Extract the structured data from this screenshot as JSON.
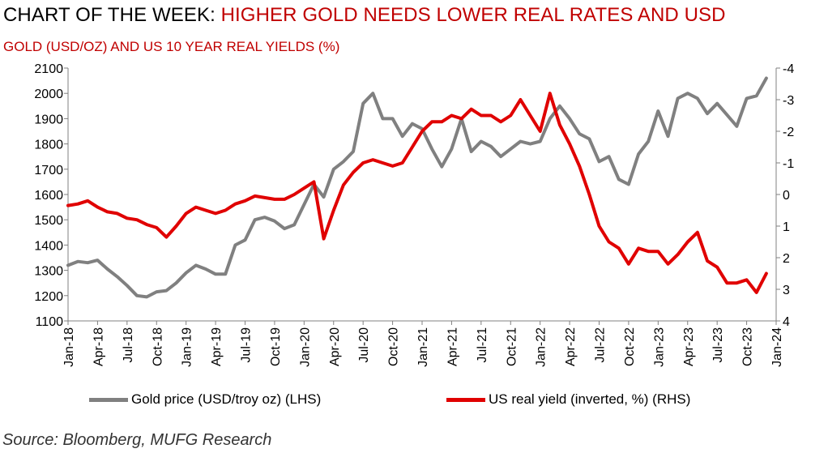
{
  "header": {
    "title_lead": "CHART OF THE WEEK: ",
    "title_highlight": "HIGHER GOLD NEEDS LOWER REAL RATES AND USD",
    "subtitle": "GOLD (USD/OZ) AND US 10 YEAR REAL YIELDS (%)"
  },
  "source": "Source: Bloomberg, MUFG Research",
  "colors": {
    "gold": "#808080",
    "yield": "#e00000",
    "title_accent": "#c00000"
  },
  "chart_data": {
    "type": "line",
    "x_ticks": [
      "Jan-18",
      "Apr-18",
      "Jul-18",
      "Oct-18",
      "Jan-19",
      "Apr-19",
      "Jul-19",
      "Oct-19",
      "Jan-20",
      "Apr-20",
      "Jul-20",
      "Oct-20",
      "Jan-21",
      "Apr-21",
      "Jul-21",
      "Oct-21",
      "Jan-22",
      "Apr-22",
      "Jul-22",
      "Oct-22",
      "Jan-23",
      "Apr-23",
      "Jul-23",
      "Oct-23",
      "Jan-24"
    ],
    "left_axis": {
      "min": 1100,
      "max": 2100,
      "step": 100,
      "ticks": [
        "1100",
        "1200",
        "1300",
        "1400",
        "1500",
        "1600",
        "1700",
        "1800",
        "1900",
        "2000",
        "2100"
      ]
    },
    "right_axis": {
      "inverted": true,
      "min": -4,
      "max": 4,
      "ticks": [
        "-4",
        "-3",
        "-2",
        "-1",
        "0",
        "1",
        "2",
        "3",
        "4"
      ]
    },
    "series": [
      {
        "name": "Gold price (USD/troy oz) (LHS)",
        "axis": "left",
        "points": [
          [
            "2018-01",
            1320
          ],
          [
            "2018-02",
            1335
          ],
          [
            "2018-03",
            1330
          ],
          [
            "2018-04",
            1340
          ],
          [
            "2018-05",
            1305
          ],
          [
            "2018-06",
            1275
          ],
          [
            "2018-07",
            1240
          ],
          [
            "2018-08",
            1200
          ],
          [
            "2018-09",
            1195
          ],
          [
            "2018-10",
            1215
          ],
          [
            "2018-11",
            1220
          ],
          [
            "2018-12",
            1250
          ],
          [
            "2019-01",
            1290
          ],
          [
            "2019-02",
            1320
          ],
          [
            "2019-03",
            1305
          ],
          [
            "2019-04",
            1285
          ],
          [
            "2019-05",
            1285
          ],
          [
            "2019-06",
            1400
          ],
          [
            "2019-07",
            1420
          ],
          [
            "2019-08",
            1500
          ],
          [
            "2019-09",
            1510
          ],
          [
            "2019-10",
            1495
          ],
          [
            "2019-11",
            1465
          ],
          [
            "2019-12",
            1480
          ],
          [
            "2020-01",
            1560
          ],
          [
            "2020-02",
            1640
          ],
          [
            "2020-03",
            1590
          ],
          [
            "2020-04",
            1700
          ],
          [
            "2020-05",
            1730
          ],
          [
            "2020-06",
            1770
          ],
          [
            "2020-07",
            1960
          ],
          [
            "2020-08",
            2000
          ],
          [
            "2020-09",
            1900
          ],
          [
            "2020-10",
            1900
          ],
          [
            "2020-11",
            1830
          ],
          [
            "2020-12",
            1880
          ],
          [
            "2021-01",
            1860
          ],
          [
            "2021-02",
            1780
          ],
          [
            "2021-03",
            1710
          ],
          [
            "2021-04",
            1780
          ],
          [
            "2021-05",
            1900
          ],
          [
            "2021-06",
            1770
          ],
          [
            "2021-07",
            1810
          ],
          [
            "2021-08",
            1790
          ],
          [
            "2021-09",
            1750
          ],
          [
            "2021-10",
            1780
          ],
          [
            "2021-11",
            1810
          ],
          [
            "2021-12",
            1800
          ],
          [
            "2022-01",
            1810
          ],
          [
            "2022-02",
            1900
          ],
          [
            "2022-03",
            1950
          ],
          [
            "2022-04",
            1900
          ],
          [
            "2022-05",
            1840
          ],
          [
            "2022-06",
            1820
          ],
          [
            "2022-07",
            1730
          ],
          [
            "2022-08",
            1750
          ],
          [
            "2022-09",
            1660
          ],
          [
            "2022-10",
            1640
          ],
          [
            "2022-11",
            1760
          ],
          [
            "2022-12",
            1810
          ],
          [
            "2023-01",
            1930
          ],
          [
            "2023-02",
            1830
          ],
          [
            "2023-03",
            1980
          ],
          [
            "2023-04",
            2000
          ],
          [
            "2023-05",
            1980
          ],
          [
            "2023-06",
            1920
          ],
          [
            "2023-07",
            1960
          ],
          [
            "2023-08",
            1915
          ],
          [
            "2023-09",
            1870
          ],
          [
            "2023-10",
            1980
          ],
          [
            "2023-11",
            1990
          ],
          [
            "2023-12",
            2060
          ]
        ]
      },
      {
        "name": "US real yield (inverted, %) (RHS)",
        "axis": "right",
        "points": [
          [
            "2018-01",
            0.35
          ],
          [
            "2018-02",
            0.3
          ],
          [
            "2018-03",
            0.2
          ],
          [
            "2018-04",
            0.4
          ],
          [
            "2018-05",
            0.55
          ],
          [
            "2018-06",
            0.6
          ],
          [
            "2018-07",
            0.75
          ],
          [
            "2018-08",
            0.8
          ],
          [
            "2018-09",
            0.95
          ],
          [
            "2018-10",
            1.05
          ],
          [
            "2018-11",
            1.35
          ],
          [
            "2018-12",
            1.0
          ],
          [
            "2019-01",
            0.6
          ],
          [
            "2019-02",
            0.4
          ],
          [
            "2019-03",
            0.5
          ],
          [
            "2019-04",
            0.6
          ],
          [
            "2019-05",
            0.5
          ],
          [
            "2019-06",
            0.3
          ],
          [
            "2019-07",
            0.2
          ],
          [
            "2019-08",
            0.05
          ],
          [
            "2019-09",
            0.1
          ],
          [
            "2019-10",
            0.15
          ],
          [
            "2019-11",
            0.15
          ],
          [
            "2019-12",
            0.0
          ],
          [
            "2020-01",
            -0.2
          ],
          [
            "2020-02",
            -0.4
          ],
          [
            "2020-03",
            1.4
          ],
          [
            "2020-04",
            0.5
          ],
          [
            "2020-05",
            -0.3
          ],
          [
            "2020-06",
            -0.7
          ],
          [
            "2020-07",
            -1.0
          ],
          [
            "2020-08",
            -1.1
          ],
          [
            "2020-09",
            -1.0
          ],
          [
            "2020-10",
            -0.9
          ],
          [
            "2020-11",
            -1.0
          ],
          [
            "2020-12",
            -1.5
          ],
          [
            "2021-01",
            -2.0
          ],
          [
            "2021-02",
            -2.3
          ],
          [
            "2021-03",
            -2.3
          ],
          [
            "2021-04",
            -2.5
          ],
          [
            "2021-05",
            -2.4
          ],
          [
            "2021-06",
            -2.7
          ],
          [
            "2021-07",
            -2.5
          ],
          [
            "2021-08",
            -2.5
          ],
          [
            "2021-09",
            -2.3
          ],
          [
            "2021-10",
            -2.5
          ],
          [
            "2021-11",
            -3.0
          ],
          [
            "2021-12",
            -2.5
          ],
          [
            "2022-01",
            -2.0
          ],
          [
            "2022-02",
            -3.2
          ],
          [
            "2022-03",
            -2.2
          ],
          [
            "2022-04",
            -1.6
          ],
          [
            "2022-05",
            -0.9
          ],
          [
            "2022-06",
            0.0
          ],
          [
            "2022-07",
            1.0
          ],
          [
            "2022-08",
            1.5
          ],
          [
            "2022-09",
            1.7
          ],
          [
            "2022-10",
            2.2
          ],
          [
            "2022-11",
            1.7
          ],
          [
            "2022-12",
            1.8
          ],
          [
            "2023-01",
            1.8
          ],
          [
            "2023-02",
            2.2
          ],
          [
            "2023-03",
            1.9
          ],
          [
            "2023-04",
            1.5
          ],
          [
            "2023-05",
            1.2
          ],
          [
            "2023-06",
            2.1
          ],
          [
            "2023-07",
            2.3
          ],
          [
            "2023-08",
            2.8
          ],
          [
            "2023-09",
            2.8
          ],
          [
            "2023-10",
            2.7
          ],
          [
            "2023-11",
            3.1
          ],
          [
            "2023-12",
            2.5
          ]
        ]
      }
    ]
  }
}
